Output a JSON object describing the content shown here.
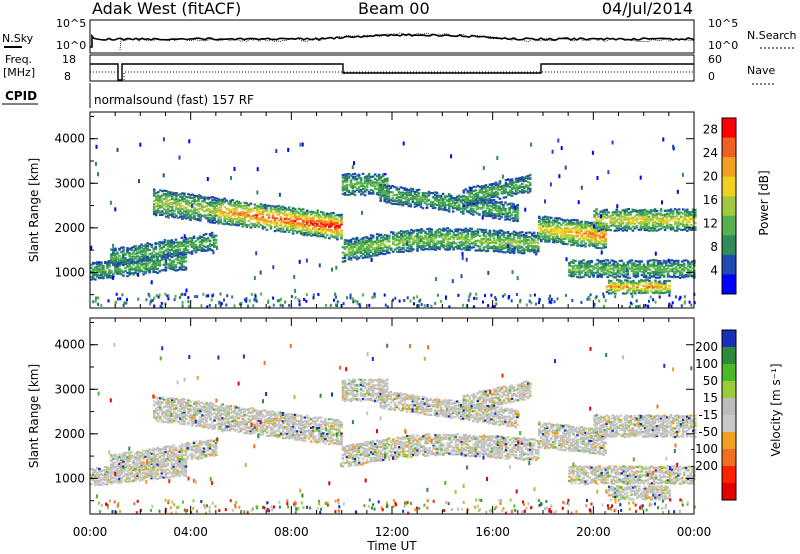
{
  "header": {
    "station": "Adak West (fitACF)",
    "beam": "Beam 00",
    "date": "04/Jul/2014"
  },
  "top_panel": {
    "left_label": "N.Sky",
    "left_ticks": [
      "10^5",
      "10^0"
    ],
    "right_ticks": [
      "10^5",
      "10^0"
    ],
    "right_label": "N.Search"
  },
  "freq_panel": {
    "left_label_line1": "Freq.",
    "left_label_line2": "[MHz]",
    "left_ticks": [
      "18",
      "8"
    ],
    "right_ticks": [
      "60",
      "0"
    ],
    "right_label": "Nave"
  },
  "cpid_panel": {
    "label": "CPID",
    "text": "normalsound (fast) 157 RF"
  },
  "colors": {
    "power_scale": [
      "#0000ff",
      "#1f4ab0",
      "#2f8c5a",
      "#55b050",
      "#a0c840",
      "#f0d020",
      "#f0a020",
      "#f06020",
      "#ff0000"
    ],
    "velocity_scale": [
      "#1a2fb8",
      "#2e8a3a",
      "#4cb82a",
      "#9acc3a",
      "#bcbcbc",
      "#c8c8c8",
      "#f0a020",
      "#f07020",
      "#ff2000",
      "#e00000"
    ]
  },
  "chart_data": [
    {
      "type": "heatmap",
      "title": "",
      "ylabel": "Slant Range [km]",
      "xlabel": "",
      "x_ticks": [
        "00:00",
        "04:00",
        "08:00",
        "12:00",
        "16:00",
        "20:00",
        "00:00"
      ],
      "y_ticks": [
        "1000",
        "2000",
        "3000",
        "4000"
      ],
      "ylim": [
        200,
        4600
      ],
      "xlim_hours": [
        0,
        24
      ],
      "colorbar_label": "Power [dB]",
      "colorbar_ticks": [
        "4",
        "8",
        "12",
        "16",
        "20",
        "24",
        "28"
      ],
      "colorbar_range": [
        0,
        30
      ]
    },
    {
      "type": "heatmap",
      "title": "",
      "ylabel": "Slant Range [km]",
      "xlabel": "Time UT",
      "x_ticks": [
        "00:00",
        "04:00",
        "08:00",
        "12:00",
        "16:00",
        "20:00",
        "00:00"
      ],
      "y_ticks": [
        "1000",
        "2000",
        "3000",
        "4000"
      ],
      "ylim": [
        200,
        4600
      ],
      "xlim_hours": [
        0,
        24
      ],
      "colorbar_label": "Velocity [m s⁻¹]",
      "colorbar_ticks": [
        "200",
        "100",
        "50",
        "15",
        "-15",
        "-50",
        "-100",
        "-200"
      ],
      "colorbar_range": [
        -250,
        250
      ]
    }
  ]
}
